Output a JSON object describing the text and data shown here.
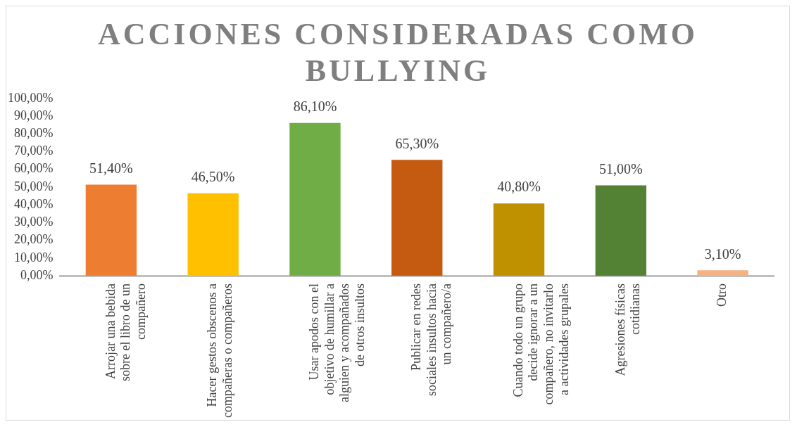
{
  "chart_data": {
    "type": "bar",
    "title": "ACCIONES CONSIDERADAS COMO BULLYING",
    "categories": [
      "Arrojar una bebida sobre el libro de un compañero",
      "Hacer gestos obscenos a compañeras o compañeros",
      "Usar apodos con el objetivo de humillar a alguien y acompañados de otros insultos",
      "Publicar en redes sociales insultos hacia un compañero/a",
      "Cuando todo un grupo decide ignorar a un compañero, no invitarlo a actividades grupales",
      "Agresiones físicas cotidianas",
      "Otro"
    ],
    "values": [
      51.4,
      46.5,
      86.1,
      65.3,
      40.8,
      51.0,
      3.1
    ],
    "colors": [
      "#ed7d31",
      "#ffc000",
      "#70ad47",
      "#c55a11",
      "#bf9000",
      "#548235",
      "#f4b183"
    ],
    "value_labels": [
      "51,40%",
      "46,50%",
      "86,10%",
      "65,30%",
      "40,80%",
      "51,00%",
      "3,10%"
    ],
    "ylim": [
      0,
      100
    ],
    "yticks": [
      {
        "value": 0,
        "label": "0,00%"
      },
      {
        "value": 10,
        "label": "10,00%"
      },
      {
        "value": 20,
        "label": "20,00%"
      },
      {
        "value": 30,
        "label": "30,00%"
      },
      {
        "value": 40,
        "label": "40,00%"
      },
      {
        "value": 50,
        "label": "50,00%"
      },
      {
        "value": 60,
        "label": "60,00%"
      },
      {
        "value": 70,
        "label": "70,00%"
      },
      {
        "value": 80,
        "label": "80,00%"
      },
      {
        "value": 90,
        "label": "90,00%"
      },
      {
        "value": 100,
        "label": "100,00%"
      }
    ],
    "grid": false,
    "legend": false
  }
}
